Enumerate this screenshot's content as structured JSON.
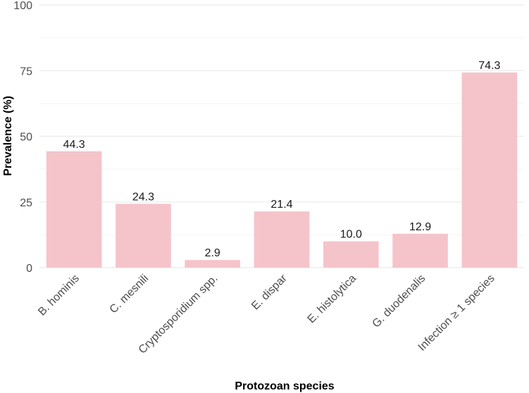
{
  "chart_data": {
    "type": "bar",
    "title": "",
    "xlabel": "Protozoan species",
    "ylabel": "Prevalence (%)",
    "categories": [
      "B. hominis",
      "C. mesnili",
      "Cryptosporidium spp.",
      "E. dispar",
      "E. histolytica",
      "G. duodenalis",
      "Infection ≥ 1 species"
    ],
    "values": [
      44.3,
      24.3,
      2.9,
      21.4,
      10.0,
      12.9,
      74.3
    ],
    "data_labels": [
      "44.3",
      "24.3",
      "2.9",
      "21.4",
      "10.0",
      "12.9",
      "74.3"
    ],
    "yticks": [
      0,
      25,
      50,
      75,
      100
    ],
    "ytick_labels": [
      "0",
      "25",
      "50",
      "75",
      "100"
    ],
    "ylim": [
      0,
      100
    ],
    "grid": true,
    "legend": "none"
  },
  "colors": {
    "bar": "#f5c4cb",
    "grid_major": "#ebebeb",
    "grid_minor": "#f5f5f5",
    "background": "#ffffff"
  }
}
